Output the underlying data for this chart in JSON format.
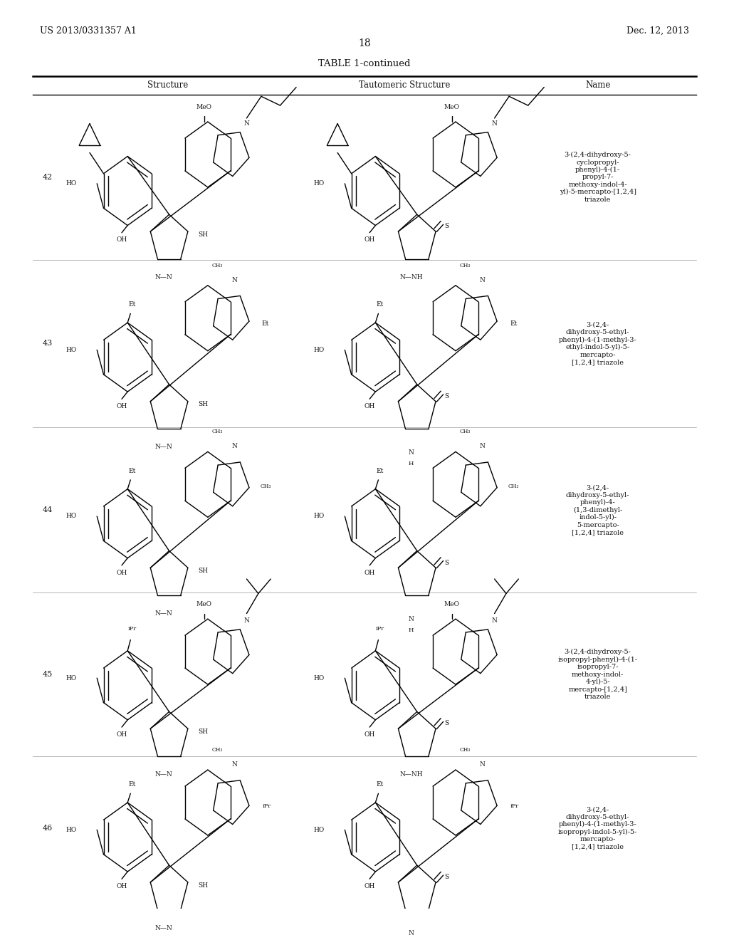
{
  "patent_number": "US 2013/0331357 A1",
  "patent_date": "Dec. 12, 2013",
  "page_number": "18",
  "table_title": "TABLE 1-continued",
  "col_headers": [
    "Structure",
    "Tautomeric Structure",
    "Name"
  ],
  "rows": [
    {
      "number": "42",
      "name": "3-(2,4-dihydroxy-5-\ncyclopropyl-\nphenyl)-4-(1-\npropyl-7-\nmethoxy-indol-4-\nyl)-5-mercapto-[1,2,4]\ntriazole"
    },
    {
      "number": "43",
      "name": "3-(2,4-\ndihydroxy-5-ethyl-\nphenyl)-4-(1-methyl-3-\nethyl-indol-5-yl)-5-\nmercapto-\n[1,2,4] triazole"
    },
    {
      "number": "44",
      "name": "3-(2,4-\ndihydroxy-5-ethyl-\nphenyl)-4-\n(1,3-dimethyl-\nindol-5-yl)-\n5-mercapto-\n[1,2,4] triazole"
    },
    {
      "number": "45",
      "name": "3-(2,4-dihydroxy-5-\nisopropyl-phenyl)-4-(1-\nisopropyl-7-\nmethoxy-indol-\n4-yl)-5-\nmercapto-[1,2,4]\ntriazole"
    },
    {
      "number": "46",
      "name": "3-(2,4-\ndihydroxy-5-ethyl-\nphenyl)-4-(1-methyl-3-\nisopropyl-indol-5-yl)-5-\nmercapto-\n[1,2,4] triazole"
    }
  ],
  "background_color": "#ffffff"
}
